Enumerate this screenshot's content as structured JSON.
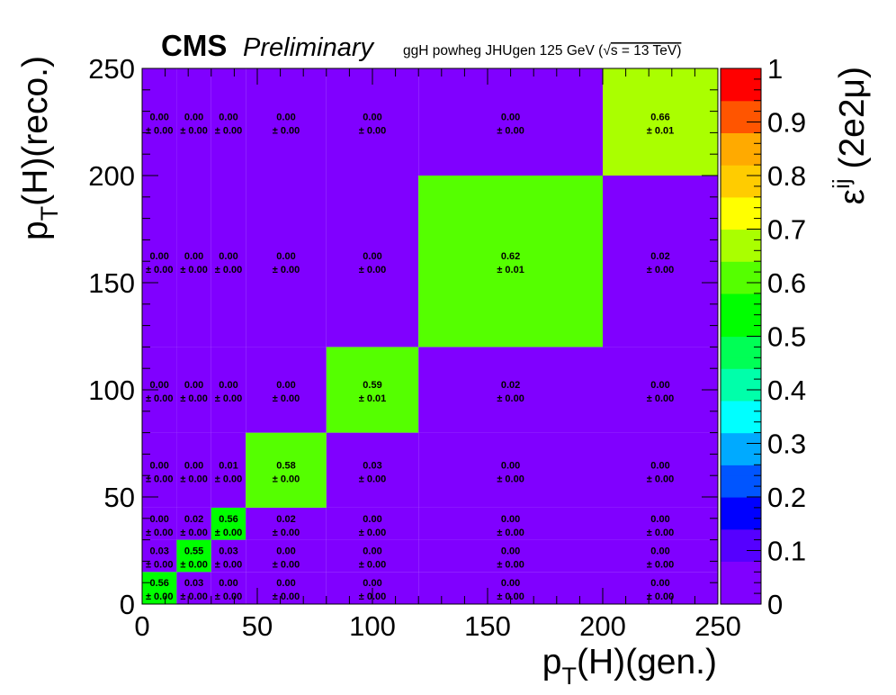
{
  "header": {
    "brand": "CMS",
    "status": "Preliminary",
    "sample": "ggH powheg JHUgen 125 GeV (",
    "sqrt_symbol": "√",
    "energy": "s = 13 TeV)"
  },
  "chart_data": {
    "type": "heatmap",
    "xlabel": {
      "main": "p",
      "sub": "T",
      "rest": "(H)(gen.)"
    },
    "ylabel": {
      "main": "p",
      "sub": "T",
      "rest": "(H)(reco.)"
    },
    "zlabel": {
      "main": "ε",
      "sup": "ij",
      "rest": " (2e2μ)"
    },
    "x_bin_edges": [
      0,
      15,
      30,
      45,
      80,
      120,
      200,
      250
    ],
    "y_bin_edges": [
      0,
      15,
      30,
      45,
      80,
      120,
      200,
      250
    ],
    "xlim": [
      0,
      250
    ],
    "ylim": [
      0,
      250
    ],
    "zlim": [
      0,
      1
    ],
    "x_ticks": [
      "0",
      "50",
      "100",
      "150",
      "200",
      "250"
    ],
    "y_ticks": [
      "0",
      "50",
      "100",
      "150",
      "200",
      "250"
    ],
    "z_ticks": [
      "0",
      "0.1",
      "0.2",
      "0.3",
      "0.4",
      "0.5",
      "0.6",
      "0.7",
      "0.8",
      "0.9",
      "1"
    ],
    "values": [
      [
        0.56,
        0.03,
        0.0,
        0.0,
        0.0,
        0.0,
        0.0
      ],
      [
        0.03,
        0.55,
        0.03,
        0.0,
        0.0,
        0.0,
        0.0
      ],
      [
        0.0,
        0.02,
        0.56,
        0.02,
        0.0,
        0.0,
        0.0
      ],
      [
        0.0,
        0.0,
        0.01,
        0.58,
        0.03,
        0.0,
        0.0
      ],
      [
        0.0,
        0.0,
        0.0,
        0.0,
        0.59,
        0.02,
        0.0
      ],
      [
        0.0,
        0.0,
        0.0,
        0.0,
        0.0,
        0.62,
        0.02
      ],
      [
        0.0,
        0.0,
        0.0,
        0.0,
        0.0,
        0.0,
        0.66
      ]
    ],
    "errors": [
      [
        0.0,
        0.0,
        0.0,
        0.0,
        0.0,
        0.0,
        0.0
      ],
      [
        0.0,
        0.0,
        0.0,
        0.0,
        0.0,
        0.0,
        0.0
      ],
      [
        0.0,
        0.0,
        0.0,
        0.0,
        0.0,
        0.0,
        0.0
      ],
      [
        0.0,
        0.0,
        0.0,
        0.0,
        0.0,
        0.0,
        0.0
      ],
      [
        0.0,
        0.0,
        0.0,
        0.0,
        0.01,
        0.0,
        0.0
      ],
      [
        0.0,
        0.0,
        0.0,
        0.0,
        0.0,
        0.01,
        0.0
      ],
      [
        0.0,
        0.0,
        0.0,
        0.0,
        0.0,
        0.0,
        0.01
      ]
    ],
    "pm_symbol": "± ",
    "palette": [
      "#8000ff",
      "#5500ff",
      "#0000ff",
      "#0055ff",
      "#00aaff",
      "#00ffff",
      "#00ffaa",
      "#00ff55",
      "#00ff00",
      "#55ff00",
      "#aaff00",
      "#ffff00",
      "#ffcc00",
      "#ffaa00",
      "#ff5500",
      "#ff0000"
    ]
  }
}
